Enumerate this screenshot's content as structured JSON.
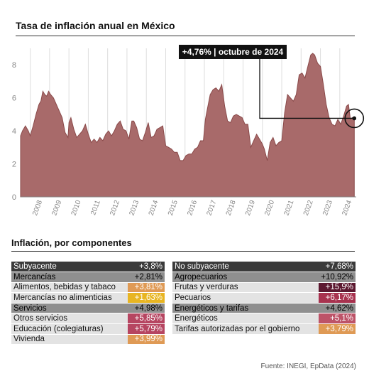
{
  "header": {
    "title": "Tasa de inflación anual en México"
  },
  "callout": {
    "label": "+4,76% | octubre de 2024"
  },
  "chart_data": {
    "type": "area",
    "title": "Tasa de inflación anual en México",
    "xlabel": "",
    "ylabel": "",
    "xlim": [
      2007.5,
      2024.85
    ],
    "ylim": [
      0,
      9
    ],
    "y_ticks": [
      0,
      2,
      4,
      6,
      8
    ],
    "x_ticks": [
      "2008",
      "2009",
      "2010",
      "2011",
      "2012",
      "2013",
      "2014",
      "2015",
      "2016",
      "2017",
      "2018",
      "2019",
      "2020",
      "2021",
      "2022",
      "2023",
      "2024"
    ],
    "grid": "vertical",
    "fill_color": "#a86a6a",
    "line_color": "#8a4a4a",
    "highlight": {
      "x": 2024.75,
      "y": 4.76
    },
    "series": [
      {
        "x": [
          2007.5,
          2007.6,
          2007.75,
          2007.9,
          2008.0,
          2008.15,
          2008.3,
          2008.45,
          2008.55,
          2008.65,
          2008.75,
          2008.85,
          2008.95,
          2009.05,
          2009.2,
          2009.35,
          2009.5,
          2009.65,
          2009.8,
          2009.95,
          2010.0,
          2010.1,
          2010.25,
          2010.4,
          2010.55,
          2010.7,
          2010.85,
          2011.0,
          2011.15,
          2011.3,
          2011.45,
          2011.6,
          2011.75,
          2011.9,
          2012.05,
          2012.2,
          2012.35,
          2012.5,
          2012.65,
          2012.8,
          2012.95,
          2013.1,
          2013.25,
          2013.35,
          2013.5,
          2013.65,
          2013.8,
          2013.95,
          2014.1,
          2014.25,
          2014.4,
          2014.55,
          2014.7,
          2014.85,
          2015.0,
          2015.15,
          2015.3,
          2015.45,
          2015.6,
          2015.75,
          2015.9,
          2016.05,
          2016.2,
          2016.35,
          2016.5,
          2016.65,
          2016.8,
          2016.95,
          2017.05,
          2017.15,
          2017.3,
          2017.45,
          2017.6,
          2017.75,
          2017.9,
          2018.05,
          2018.2,
          2018.35,
          2018.5,
          2018.65,
          2018.8,
          2018.95,
          2019.1,
          2019.25,
          2019.4,
          2019.55,
          2019.7,
          2019.85,
          2020.0,
          2020.1,
          2020.25,
          2020.4,
          2020.55,
          2020.7,
          2020.85,
          2021.0,
          2021.15,
          2021.3,
          2021.45,
          2021.6,
          2021.75,
          2021.9,
          2022.05,
          2022.2,
          2022.35,
          2022.5,
          2022.6,
          2022.7,
          2022.85,
          2023.0,
          2023.15,
          2023.3,
          2023.45,
          2023.6,
          2023.75,
          2023.9,
          2024.05,
          2024.2,
          2024.35,
          2024.45,
          2024.55,
          2024.65,
          2024.75
        ],
        "y": [
          3.7,
          4.0,
          4.3,
          4.0,
          3.7,
          4.3,
          5.0,
          5.6,
          5.8,
          6.4,
          6.2,
          6.1,
          6.4,
          6.2,
          6.0,
          5.6,
          5.2,
          4.8,
          3.9,
          3.6,
          4.5,
          4.8,
          4.1,
          3.6,
          3.8,
          4.0,
          4.4,
          3.8,
          3.3,
          3.5,
          3.3,
          3.6,
          3.4,
          3.8,
          4.0,
          3.7,
          4.0,
          4.4,
          4.6,
          4.1,
          4.0,
          3.5,
          4.6,
          4.6,
          4.2,
          3.5,
          3.4,
          3.9,
          4.5,
          3.6,
          3.7,
          4.1,
          4.2,
          4.3,
          3.1,
          3.0,
          2.9,
          2.7,
          2.7,
          2.2,
          2.2,
          2.5,
          2.6,
          2.6,
          2.9,
          3.0,
          3.4,
          3.4,
          4.7,
          5.3,
          6.2,
          6.5,
          6.6,
          6.4,
          6.8,
          5.5,
          4.6,
          4.5,
          4.9,
          5.0,
          4.9,
          4.8,
          4.4,
          4.4,
          3.0,
          3.4,
          3.8,
          3.5,
          3.2,
          2.9,
          2.2,
          3.3,
          3.6,
          3.1,
          3.3,
          3.4,
          5.1,
          6.2,
          6.0,
          5.8,
          6.2,
          7.4,
          7.5,
          7.2,
          7.9,
          8.6,
          8.7,
          8.6,
          8.1,
          7.9,
          6.8,
          5.6,
          4.8,
          4.4,
          4.3,
          4.7,
          4.4,
          4.9,
          5.5,
          5.6,
          4.7,
          4.8,
          4.76
        ]
      }
    ]
  },
  "components": {
    "title": "Inflación, por componentes",
    "left": [
      {
        "label": "Subyacente",
        "value": "+3,8%",
        "level": 0
      },
      {
        "label": "Mercancías",
        "value": "+2,81%",
        "level": 1
      },
      {
        "label": "Alimentos, bebidas y tabaco",
        "value": "+3,81%",
        "level": 2,
        "color": "#df9a55"
      },
      {
        "label": "Mercancías no alimenticias",
        "value": "+1,63%",
        "level": 2,
        "color": "#e8b522"
      },
      {
        "label": "Servicios",
        "value": "+4,98%",
        "level": 1
      },
      {
        "label": "Otros servicios",
        "value": "+5,85%",
        "level": 2,
        "color": "#b64561"
      },
      {
        "label": "Educación (colegiaturas)",
        "value": "+5,79%",
        "level": 2,
        "color": "#b64561"
      },
      {
        "label": "Vivienda",
        "value": "+3,99%",
        "level": 2,
        "color": "#df9a55"
      }
    ],
    "right": [
      {
        "label": "No subyacente",
        "value": "+7,68%",
        "level": 0
      },
      {
        "label": "Agropecuarios",
        "value": "+10,92%",
        "level": 1
      },
      {
        "label": "Frutas y verduras",
        "value": "+15,9%",
        "level": 2,
        "color": "#5c1830"
      },
      {
        "label": "Pecuarios",
        "value": "+6,17%",
        "level": 2,
        "color": "#a8324f"
      },
      {
        "label": "Energéticos y tarifas",
        "value": "+4,62%",
        "level": 1
      },
      {
        "label": "Energéticos",
        "value": "+5,1%",
        "level": 2,
        "color": "#bd5368"
      },
      {
        "label": "Tarifas autorizadas por el gobierno",
        "value": "+3,79%",
        "level": 2,
        "color": "#df9a55"
      }
    ]
  },
  "footer": {
    "source": "Fuente: INEGI, EpData (2024)"
  }
}
